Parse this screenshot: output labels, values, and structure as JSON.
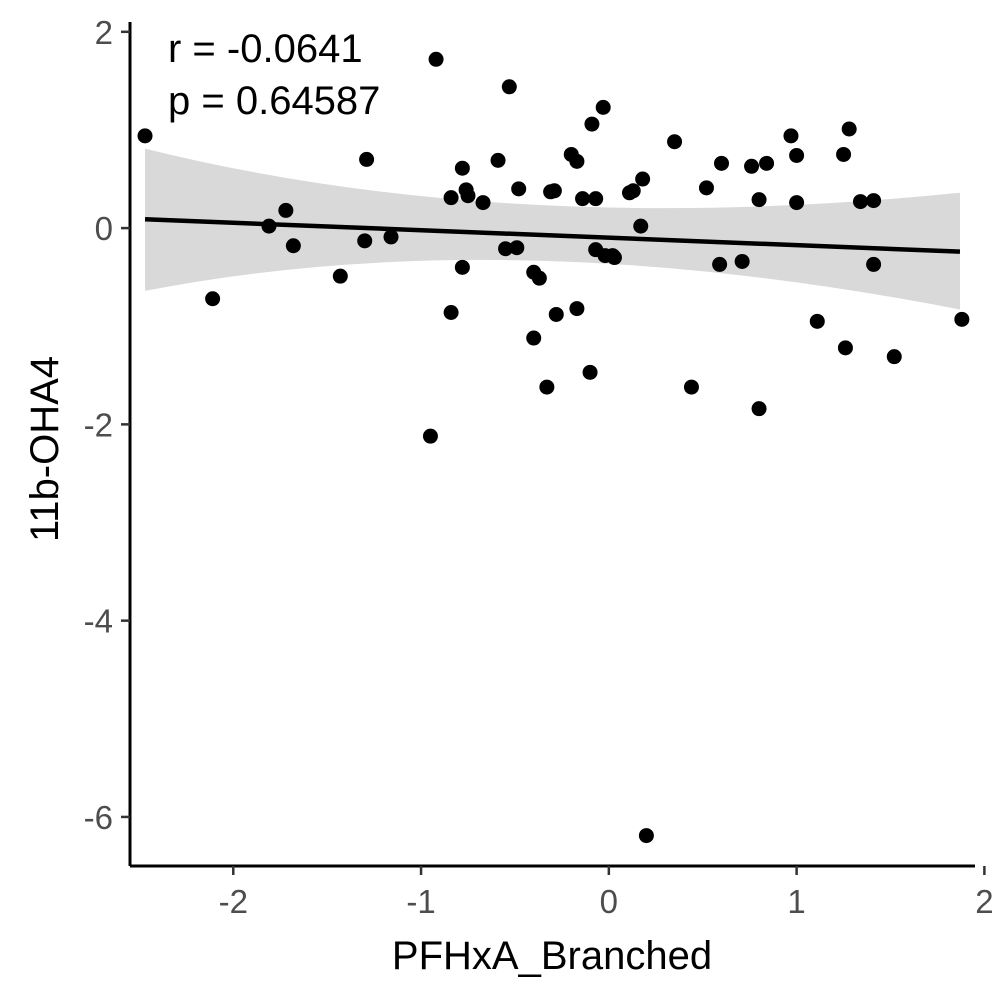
{
  "chart_data": {
    "type": "scatter",
    "xlabel": "PFHxA_Branched",
    "ylabel": "11b-OHA4",
    "annotations": [
      "r = -0.0641",
      "p = 0.64587"
    ],
    "xlim": [
      -2.55,
      1.95
    ],
    "ylim": [
      -6.5,
      2.1
    ],
    "x_ticks": [
      -2,
      -1,
      0,
      1,
      2
    ],
    "y_ticks": [
      -6,
      -4,
      -2,
      0,
      2
    ],
    "grid": false,
    "regression": {
      "x": [
        -2.47,
        1.87
      ],
      "y": [
        0.09,
        -0.24
      ],
      "ci_lower": [
        -0.64,
        -0.83
      ],
      "ci_upper": [
        0.81,
        0.36
      ],
      "ci_center": [
        -0.55,
        -0.1
      ],
      "ci_mid_lower": [
        -0.33,
        -0.38
      ],
      "ci_mid_upper": [
        0.24,
        0.13
      ]
    },
    "points": [
      {
        "x": -2.47,
        "y": 0.94
      },
      {
        "x": -2.11,
        "y": -0.72
      },
      {
        "x": -1.81,
        "y": 0.02
      },
      {
        "x": -1.72,
        "y": 0.18
      },
      {
        "x": -1.68,
        "y": -0.18
      },
      {
        "x": -1.43,
        "y": -0.49
      },
      {
        "x": -1.3,
        "y": -0.13
      },
      {
        "x": -1.29,
        "y": 0.7
      },
      {
        "x": -1.16,
        "y": -0.09
      },
      {
        "x": -0.95,
        "y": -2.12
      },
      {
        "x": -0.92,
        "y": 1.72
      },
      {
        "x": -0.84,
        "y": 0.31
      },
      {
        "x": -0.84,
        "y": -0.86
      },
      {
        "x": -0.78,
        "y": 0.61
      },
      {
        "x": -0.78,
        "y": -0.4
      },
      {
        "x": -0.76,
        "y": 0.39
      },
      {
        "x": -0.75,
        "y": 0.33
      },
      {
        "x": -0.67,
        "y": 0.26
      },
      {
        "x": -0.59,
        "y": 0.69
      },
      {
        "x": -0.55,
        "y": -0.21
      },
      {
        "x": -0.53,
        "y": 1.44
      },
      {
        "x": -0.49,
        "y": -0.2
      },
      {
        "x": -0.48,
        "y": 0.4
      },
      {
        "x": -0.4,
        "y": -0.45
      },
      {
        "x": -0.4,
        "y": -1.12
      },
      {
        "x": -0.37,
        "y": -0.51
      },
      {
        "x": -0.33,
        "y": -1.62
      },
      {
        "x": -0.31,
        "y": 0.37
      },
      {
        "x": -0.29,
        "y": 0.38
      },
      {
        "x": -0.28,
        "y": -0.88
      },
      {
        "x": -0.2,
        "y": 0.75
      },
      {
        "x": -0.17,
        "y": 0.68
      },
      {
        "x": -0.17,
        "y": -0.82
      },
      {
        "x": -0.14,
        "y": 0.3
      },
      {
        "x": -0.1,
        "y": -1.47
      },
      {
        "x": -0.09,
        "y": 1.06
      },
      {
        "x": -0.07,
        "y": 0.3
      },
      {
        "x": -0.07,
        "y": -0.22
      },
      {
        "x": -0.03,
        "y": 1.23
      },
      {
        "x": -0.02,
        "y": -0.28
      },
      {
        "x": 0.02,
        "y": -0.28
      },
      {
        "x": 0.03,
        "y": -0.3
      },
      {
        "x": 0.11,
        "y": 0.36
      },
      {
        "x": 0.13,
        "y": 0.38
      },
      {
        "x": 0.17,
        "y": 0.02
      },
      {
        "x": 0.18,
        "y": 0.5
      },
      {
        "x": 0.2,
        "y": -6.19
      },
      {
        "x": 0.35,
        "y": 0.88
      },
      {
        "x": 0.44,
        "y": -1.62
      },
      {
        "x": 0.52,
        "y": 0.41
      },
      {
        "x": 0.59,
        "y": -0.37
      },
      {
        "x": 0.6,
        "y": 0.66
      },
      {
        "x": 0.71,
        "y": -0.34
      },
      {
        "x": 0.76,
        "y": 0.63
      },
      {
        "x": 0.8,
        "y": 0.29
      },
      {
        "x": 0.8,
        "y": -1.84
      },
      {
        "x": 0.84,
        "y": 0.66
      },
      {
        "x": 0.97,
        "y": 0.94
      },
      {
        "x": 1.0,
        "y": 0.74
      },
      {
        "x": 1.0,
        "y": 0.26
      },
      {
        "x": 1.11,
        "y": -0.95
      },
      {
        "x": 1.25,
        "y": 0.75
      },
      {
        "x": 1.26,
        "y": -1.22
      },
      {
        "x": 1.28,
        "y": 1.01
      },
      {
        "x": 1.34,
        "y": 0.27
      },
      {
        "x": 1.41,
        "y": 0.28
      },
      {
        "x": 1.41,
        "y": -0.37
      },
      {
        "x": 1.52,
        "y": -1.31
      },
      {
        "x": 1.88,
        "y": -0.93
      }
    ]
  }
}
